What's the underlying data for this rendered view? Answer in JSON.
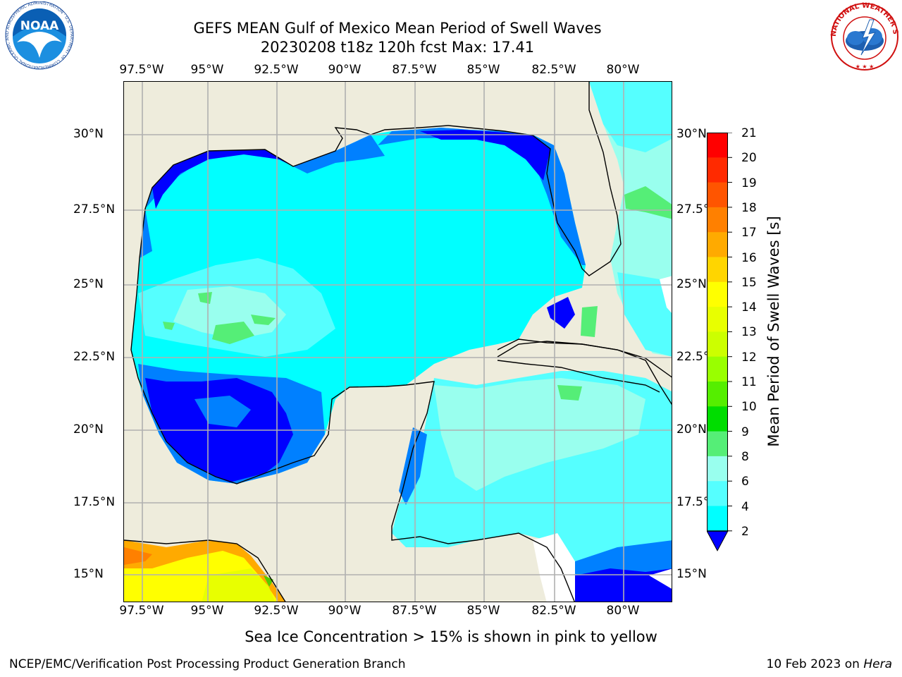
{
  "title": {
    "line1": "GEFS MEAN Gulf of Mexico Mean Period of Swell Waves",
    "line2": "20230208 t18z 120h fcst   Max: 17.41"
  },
  "map": {
    "longitude_ticks": [
      "97.5°W",
      "95°W",
      "92.5°W",
      "90°W",
      "87.5°W",
      "85°W",
      "82.5°W",
      "80°W"
    ],
    "latitude_ticks": [
      "30°N",
      "27.5°N",
      "25°N",
      "22.5°N",
      "20°N",
      "17.5°N",
      "15°N"
    ],
    "land_color": "#eeecdc",
    "coast_color": "#000000",
    "grid_color": "#b0b0b0"
  },
  "colorbar": {
    "title": "Mean Period of Swell Waves [s]",
    "labels": [
      "21",
      "20",
      "19",
      "18",
      "17",
      "16",
      "15",
      "14",
      "13",
      "12",
      "11",
      "10",
      "9",
      "8",
      "6",
      "4",
      "2"
    ],
    "colors": [
      "#ff0000",
      "#ff2a00",
      "#ff5500",
      "#ff8000",
      "#ffaa00",
      "#ffd500",
      "#ffff00",
      "#e8ff00",
      "#ccff00",
      "#99ff00",
      "#55ee00",
      "#00dd00",
      "#55ee77",
      "#99ffee",
      "#55ffff",
      "#00ffff",
      "#00aaff",
      "#0055ff",
      "#0000ff"
    ]
  },
  "note": "Sea Ice Concentration > 15% is shown in pink to yellow",
  "footer": {
    "left": "NCEP/EMC/Verification Post Processing Product Generation Branch",
    "right_prefix": "10 Feb 2023 on ",
    "right_italic": "Hera"
  },
  "logos": {
    "noaa": "NOAA",
    "noaa_ring": "NATIONAL OCEANIC AND ATMOSPHERIC ADMINISTRATION · U.S. DEPARTMENT OF COMMERCE",
    "nws_ring": "NATIONAL WEATHER SERVICE"
  }
}
